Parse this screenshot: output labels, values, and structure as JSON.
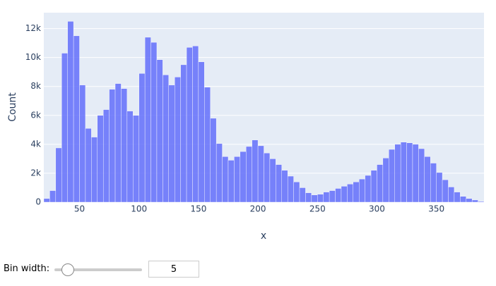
{
  "chart_data": {
    "type": "histogram",
    "x_label": "x",
    "y_label": "Count",
    "bins": [
      20,
      25,
      30,
      35,
      40,
      45,
      50,
      55,
      60,
      65,
      70,
      75,
      80,
      85,
      90,
      95,
      100,
      105,
      110,
      115,
      120,
      125,
      130,
      135,
      140,
      145,
      150,
      155,
      160,
      165,
      170,
      175,
      180,
      185,
      190,
      195,
      200,
      205,
      210,
      215,
      220,
      225,
      230,
      235,
      240,
      245,
      250,
      255,
      260,
      265,
      270,
      275,
      280,
      285,
      290,
      295,
      300,
      305,
      310,
      315,
      320,
      325,
      330,
      335,
      340,
      345,
      350,
      355,
      360,
      365,
      370,
      375,
      380,
      385,
      390
    ],
    "values": [
      250,
      800,
      3750,
      10300,
      12500,
      11500,
      8100,
      5100,
      4500,
      6000,
      6400,
      7800,
      8200,
      7850,
      6300,
      6000,
      8900,
      11400,
      11050,
      9850,
      8800,
      8100,
      8650,
      9500,
      10700,
      10800,
      9700,
      7950,
      5800,
      4050,
      3150,
      2900,
      3150,
      3500,
      3850,
      4300,
      3900,
      3400,
      3000,
      2600,
      2200,
      1800,
      1400,
      1000,
      650,
      500,
      550,
      700,
      800,
      950,
      1100,
      1250,
      1400,
      1600,
      1850,
      2200,
      2600,
      3050,
      3650,
      4000,
      4150,
      4100,
      4000,
      3700,
      3150,
      2700,
      2050,
      1550,
      1050,
      700,
      400,
      250,
      150,
      50
    ],
    "color": "#636efa",
    "xlim": [
      20,
      390
    ],
    "xticks": [
      50,
      100,
      150,
      200,
      250,
      300,
      350
    ],
    "ylim": [
      0,
      13100
    ],
    "yticks": [
      0,
      {
        "value": 2000,
        "label": "2k"
      },
      {
        "value": 4000,
        "label": "4k"
      },
      {
        "value": 6000,
        "label": "6k"
      },
      {
        "value": 8000,
        "label": "8k"
      },
      {
        "value": 10000,
        "label": "10k"
      },
      {
        "value": 12000,
        "label": "12k"
      }
    ],
    "grid": true
  },
  "controls": {
    "label": "Bin width:",
    "value": 5
  }
}
